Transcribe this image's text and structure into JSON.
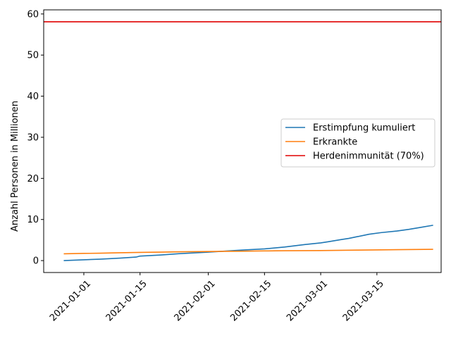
{
  "chart_data": {
    "type": "line",
    "title": "",
    "xlabel": "",
    "ylabel": "Anzahl Personen in Millionen",
    "xlim": [
      "2020-12-22",
      "2021-03-31"
    ],
    "ylim": [
      -2.9,
      61
    ],
    "grid": false,
    "legend": {
      "placement": "center-right"
    },
    "x_ticks": [
      "2021-01-01",
      "2021-01-15",
      "2021-02-01",
      "2021-02-15",
      "2021-03-01",
      "2021-03-15"
    ],
    "y_ticks": [
      0,
      10,
      20,
      30,
      40,
      50,
      60
    ],
    "series": [
      {
        "name": "Erstimpfung kumuliert",
        "color": "#1f77b4",
        "points": [
          [
            "2020-12-27",
            0.0
          ],
          [
            "2021-01-01",
            0.2
          ],
          [
            "2021-01-05",
            0.35
          ],
          [
            "2021-01-10",
            0.6
          ],
          [
            "2021-01-14",
            0.85
          ],
          [
            "2021-01-15",
            1.1
          ],
          [
            "2021-01-20",
            1.35
          ],
          [
            "2021-01-25",
            1.7
          ],
          [
            "2021-01-30",
            1.95
          ],
          [
            "2021-02-01",
            2.05
          ],
          [
            "2021-02-05",
            2.3
          ],
          [
            "2021-02-10",
            2.6
          ],
          [
            "2021-02-15",
            2.85
          ],
          [
            "2021-02-20",
            3.3
          ],
          [
            "2021-02-25",
            3.9
          ],
          [
            "2021-03-01",
            4.3
          ],
          [
            "2021-03-03",
            4.6
          ],
          [
            "2021-03-06",
            5.1
          ],
          [
            "2021-03-08",
            5.4
          ],
          [
            "2021-03-10",
            5.8
          ],
          [
            "2021-03-13",
            6.4
          ],
          [
            "2021-03-16",
            6.8
          ],
          [
            "2021-03-20",
            7.2
          ],
          [
            "2021-03-23",
            7.6
          ],
          [
            "2021-03-26",
            8.1
          ],
          [
            "2021-03-29",
            8.6
          ]
        ]
      },
      {
        "name": "Erkrankte",
        "color": "#ff7f0e",
        "points": [
          [
            "2020-12-27",
            1.65
          ],
          [
            "2021-01-01",
            1.75
          ],
          [
            "2021-01-05",
            1.8
          ],
          [
            "2021-01-10",
            1.9
          ],
          [
            "2021-01-15",
            2.0
          ],
          [
            "2021-01-20",
            2.05
          ],
          [
            "2021-01-25",
            2.15
          ],
          [
            "2021-02-01",
            2.2
          ],
          [
            "2021-02-05",
            2.25
          ],
          [
            "2021-02-10",
            2.3
          ],
          [
            "2021-02-15",
            2.35
          ],
          [
            "2021-02-20",
            2.4
          ],
          [
            "2021-03-01",
            2.45
          ],
          [
            "2021-03-10",
            2.55
          ],
          [
            "2021-03-20",
            2.65
          ],
          [
            "2021-03-29",
            2.75
          ]
        ]
      }
    ],
    "hlines": [
      {
        "name": "Herdenimmunität (70%)",
        "y": 58.1,
        "color": "#e00000"
      }
    ]
  }
}
